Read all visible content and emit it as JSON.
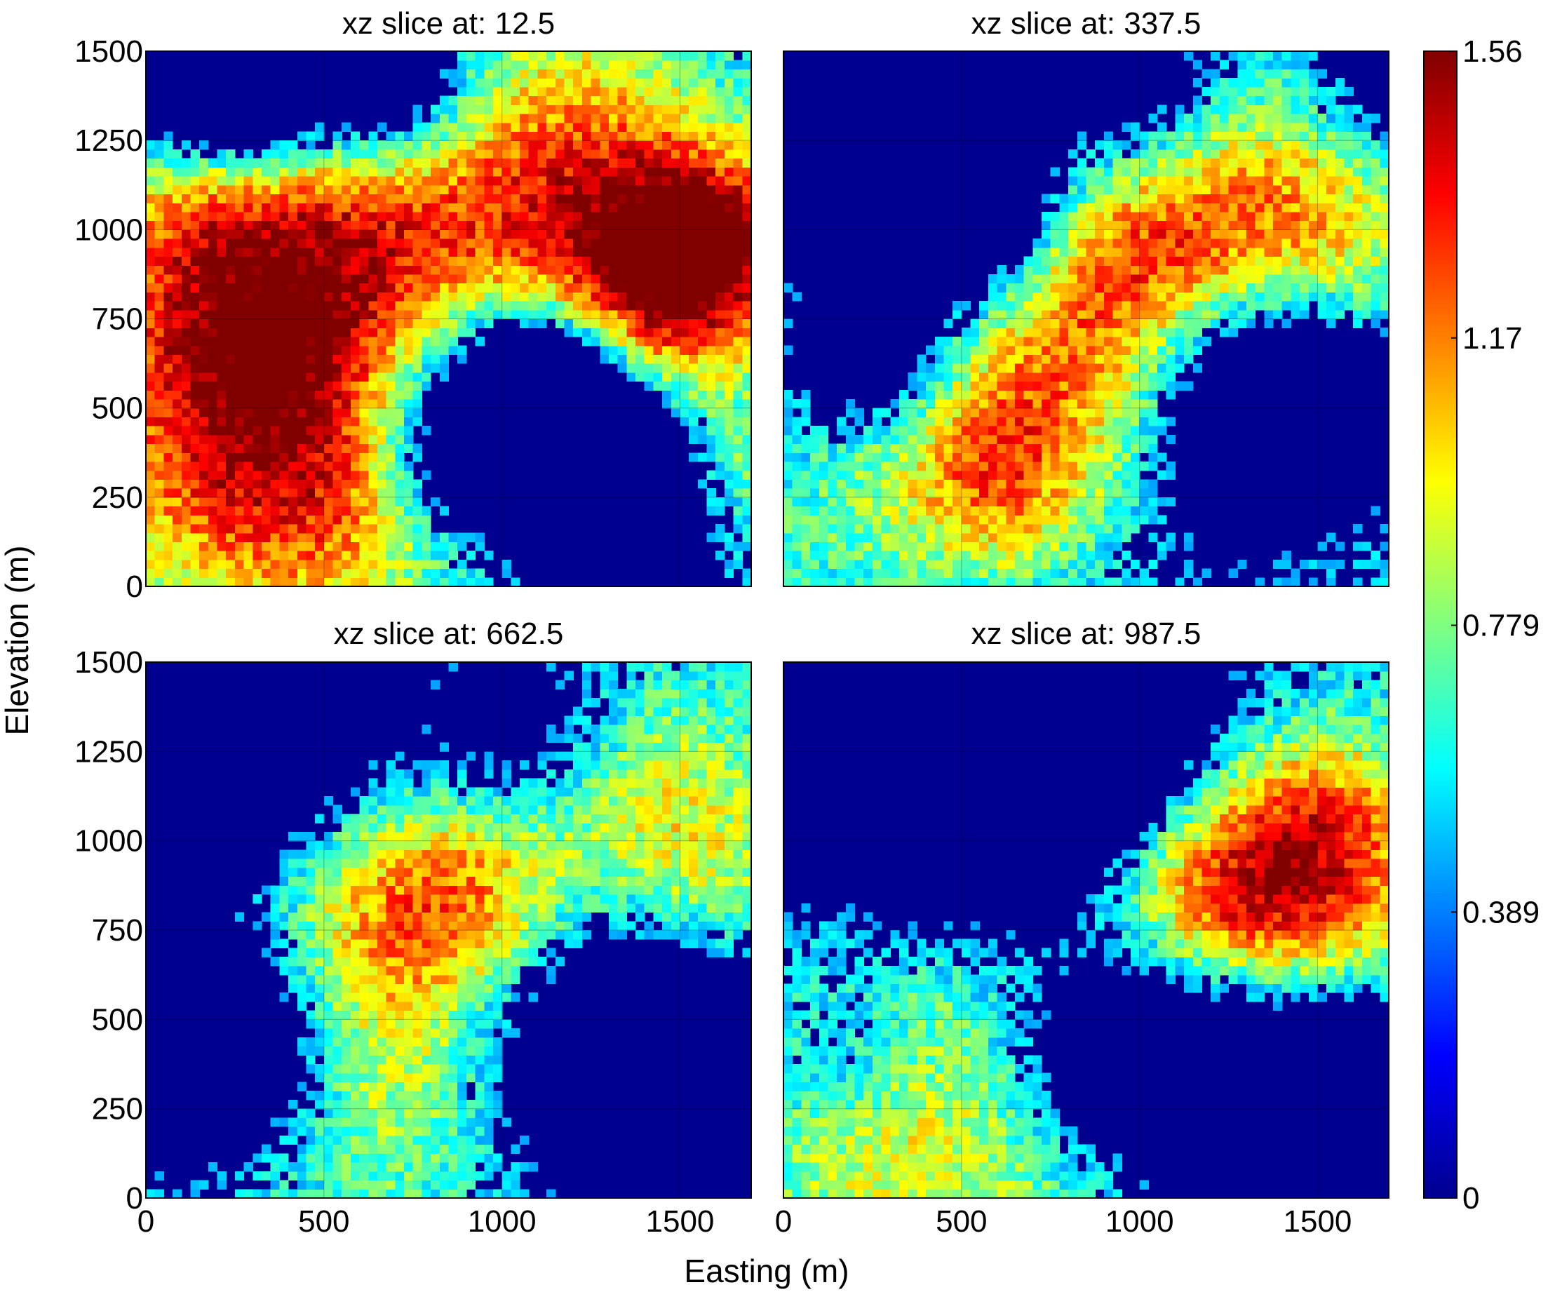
{
  "chart_data": {
    "type": "heatmap",
    "colormap": "jet",
    "grid": true,
    "x_label": "Easting (m)",
    "y_label": "Elevation (m)",
    "x_range": [
      0,
      1700
    ],
    "y_range": [
      0,
      1500
    ],
    "x_ticks": [
      "0",
      "500",
      "1000",
      "1500"
    ],
    "y_ticks": [
      "0",
      "250",
      "500",
      "750",
      "1000",
      "1250",
      "1500"
    ],
    "colorbar": {
      "range": [
        0,
        1.56
      ],
      "ticks": [
        {
          "value": 0,
          "label": "0"
        },
        {
          "value": 0.389,
          "label": "0.389"
        },
        {
          "value": 0.779,
          "label": "0.779"
        },
        {
          "value": 1.17,
          "label": "1.17"
        },
        {
          "value": 1.56,
          "label": "1.56"
        }
      ]
    },
    "panels": [
      {
        "title": "xz slice at: 12.5",
        "blobs": [
          {
            "x": 1500,
            "y": 950,
            "r": 230,
            "v": 1.2
          },
          {
            "x": 1620,
            "y": 980,
            "r": 140,
            "v": 0.5
          },
          {
            "x": 1150,
            "y": 850,
            "r": 260,
            "v": 0.55
          },
          {
            "x": 1450,
            "y": 720,
            "r": 200,
            "v": 0.45
          },
          {
            "x": 850,
            "y": 1150,
            "r": 300,
            "v": 0.6
          },
          {
            "x": 1250,
            "y": 1350,
            "r": 250,
            "v": 0.45
          },
          {
            "x": 200,
            "y": 850,
            "r": 300,
            "v": 0.85
          },
          {
            "x": 550,
            "y": 920,
            "r": 250,
            "v": 0.55
          },
          {
            "x": 250,
            "y": 350,
            "r": 330,
            "v": 0.95
          },
          {
            "x": 600,
            "y": 180,
            "r": 250,
            "v": 0.5
          },
          {
            "x": 1050,
            "y": 120,
            "r": 200,
            "v": 0.35
          },
          {
            "x": 450,
            "y": 580,
            "r": 200,
            "v": 0.25
          },
          {
            "x": 1650,
            "y": 300,
            "r": 160,
            "v": 0.6
          },
          {
            "x": 120,
            "y": 1150,
            "r": 200,
            "v": 0.3
          },
          {
            "x": 300,
            "y": 1420,
            "r": 180,
            "v": -1.2
          },
          {
            "x": 700,
            "y": 1400,
            "r": 160,
            "v": -1.0
          },
          {
            "x": 1000,
            "y": 400,
            "r": 230,
            "v": -1.4
          },
          {
            "x": 1350,
            "y": 260,
            "r": 200,
            "v": -1.2
          },
          {
            "x": 1150,
            "y": 620,
            "r": 160,
            "v": -0.8
          },
          {
            "x": 100,
            "y": 1400,
            "r": 150,
            "v": -0.7
          }
        ]
      },
      {
        "title": "xz slice at: 337.5",
        "blobs": [
          {
            "x": 1050,
            "y": 950,
            "r": 230,
            "v": 0.6
          },
          {
            "x": 1550,
            "y": 900,
            "r": 240,
            "v": 0.7
          },
          {
            "x": 1250,
            "y": 1050,
            "r": 250,
            "v": 0.45
          },
          {
            "x": 600,
            "y": 300,
            "r": 200,
            "v": 0.9
          },
          {
            "x": 700,
            "y": 650,
            "r": 220,
            "v": 0.55
          },
          {
            "x": 850,
            "y": 850,
            "r": 200,
            "v": 0.4
          },
          {
            "x": 1000,
            "y": 450,
            "r": 180,
            "v": 0.35
          },
          {
            "x": 300,
            "y": 500,
            "r": 200,
            "v": 0.1
          },
          {
            "x": 150,
            "y": 180,
            "r": 200,
            "v": 0.3
          },
          {
            "x": 1550,
            "y": 200,
            "r": 200,
            "v": 0.3
          },
          {
            "x": 1450,
            "y": 1350,
            "r": 200,
            "v": 0.2
          },
          {
            "x": 300,
            "y": 1350,
            "r": 250,
            "v": -1.3
          },
          {
            "x": 550,
            "y": 1000,
            "r": 180,
            "v": -0.8
          },
          {
            "x": 1400,
            "y": 500,
            "r": 260,
            "v": -1.4
          },
          {
            "x": 250,
            "y": 650,
            "r": 150,
            "v": -0.7
          },
          {
            "x": 1000,
            "y": 1400,
            "r": 180,
            "v": -0.6
          },
          {
            "x": 1650,
            "y": 1400,
            "r": 140,
            "v": -0.5
          }
        ]
      },
      {
        "title": "xz slice at: 662.5",
        "blobs": [
          {
            "x": 700,
            "y": 800,
            "r": 240,
            "v": 0.7
          },
          {
            "x": 950,
            "y": 850,
            "r": 200,
            "v": 0.5
          },
          {
            "x": 1450,
            "y": 1100,
            "r": 260,
            "v": 0.6
          },
          {
            "x": 1600,
            "y": 800,
            "r": 200,
            "v": 0.35
          },
          {
            "x": 600,
            "y": 400,
            "r": 220,
            "v": 0.4
          },
          {
            "x": 250,
            "y": 750,
            "r": 260,
            "v": 0.4
          },
          {
            "x": 300,
            "y": 100,
            "r": 320,
            "v": 0.25
          },
          {
            "x": 800,
            "y": 150,
            "r": 250,
            "v": 0.2
          },
          {
            "x": 200,
            "y": 450,
            "r": 240,
            "v": -1.4
          },
          {
            "x": 150,
            "y": 1250,
            "r": 260,
            "v": -1.4
          },
          {
            "x": 1400,
            "y": 400,
            "r": 260,
            "v": -1.3
          },
          {
            "x": 1050,
            "y": 1300,
            "r": 180,
            "v": -0.5
          },
          {
            "x": 1600,
            "y": 150,
            "r": 200,
            "v": -0.8
          },
          {
            "x": 500,
            "y": 1450,
            "r": 150,
            "v": -0.7
          }
        ]
      },
      {
        "title": "xz slice at: 987.5",
        "blobs": [
          {
            "x": 1400,
            "y": 850,
            "r": 280,
            "v": 1.0
          },
          {
            "x": 1550,
            "y": 1050,
            "r": 220,
            "v": 0.5
          },
          {
            "x": 1200,
            "y": 800,
            "r": 200,
            "v": 0.4
          },
          {
            "x": 400,
            "y": 650,
            "r": 320,
            "v": 0.5
          },
          {
            "x": 900,
            "y": 750,
            "r": 280,
            "v": 0.5
          },
          {
            "x": 300,
            "y": 100,
            "r": 320,
            "v": 0.55
          },
          {
            "x": 900,
            "y": 120,
            "r": 250,
            "v": 0.4
          },
          {
            "x": 500,
            "y": 1200,
            "r": 360,
            "v": -1.6
          },
          {
            "x": 700,
            "y": 1450,
            "r": 300,
            "v": -1.2
          },
          {
            "x": 1000,
            "y": 420,
            "r": 250,
            "v": -1.4
          },
          {
            "x": 1500,
            "y": 350,
            "r": 220,
            "v": -0.9
          },
          {
            "x": 1400,
            "y": 100,
            "r": 200,
            "v": -0.8
          },
          {
            "x": 200,
            "y": 400,
            "r": 150,
            "v": -0.4
          }
        ]
      }
    ]
  }
}
